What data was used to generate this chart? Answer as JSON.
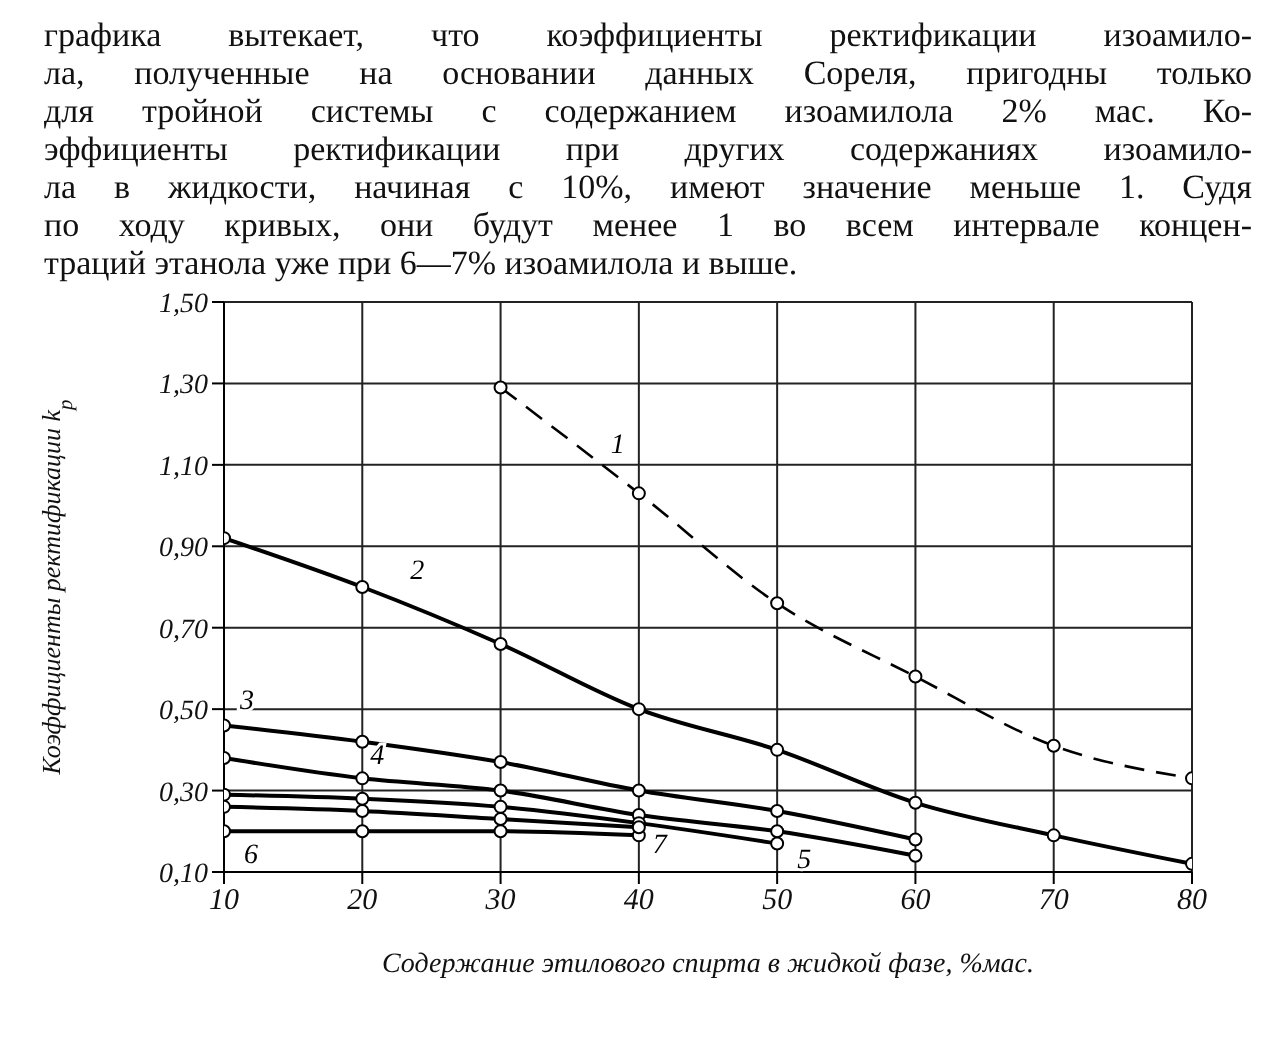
{
  "chart_data": {
    "type": "line",
    "annotations": [
      "графика вытекает, что коэффициенты ректификации изоамило-",
      "ла, полученные на основании данных Сореля, пригодны только",
      "для тройной системы с содержанием изоамилола 2% мас. Ко-",
      "эффициенты ректификации при других содержаниях изоамило-",
      "ла в жидкости, начиная с 10%, имеют значение меньше 1. Судя",
      "по ходу кривых, они будут менее 1 во всем интервале концен-",
      "траций этанола уже при 6—7% изоамилола и выше."
    ],
    "xlabel": "Содержание этилового спирта в жидкой фазе, %мас.",
    "ylabel": "Коэффициенты ректификации k$_{р}$",
    "xlim": [
      10,
      80
    ],
    "xticks": [
      10,
      20,
      30,
      40,
      50,
      60,
      70,
      80
    ],
    "ylim": [
      0.1,
      1.5
    ],
    "yticks": [
      {
        "value": 0.1,
        "label": "0,10"
      },
      {
        "value": 0.3,
        "label": "0,30"
      },
      {
        "value": 0.5,
        "label": "0,50"
      },
      {
        "value": 0.7,
        "label": "0,70"
      },
      {
        "value": 0.9,
        "label": "0,90"
      },
      {
        "value": 1.1,
        "label": "1,10"
      },
      {
        "value": 1.3,
        "label": "1,30"
      },
      {
        "value": 1.5,
        "label": "1,50"
      }
    ],
    "grid": true,
    "marker": "circle",
    "series": [
      {
        "name": "1",
        "color": "#000000",
        "line_style": "dashed",
        "x": [
          30,
          40,
          50,
          60,
          70,
          80
        ],
        "values": [
          1.29,
          1.03,
          0.76,
          0.58,
          0.41,
          0.33
        ]
      },
      {
        "name": "2",
        "color": "#000000",
        "x": [
          10,
          20,
          30,
          40,
          50,
          60,
          70,
          80
        ],
        "values": [
          0.92,
          0.8,
          0.66,
          0.5,
          0.4,
          0.27,
          0.19,
          0.12
        ]
      },
      {
        "name": "3",
        "color": "#000000",
        "x": [
          10,
          20,
          30,
          40,
          50,
          60
        ],
        "values": [
          0.46,
          0.42,
          0.37,
          0.3,
          0.25,
          0.18
        ]
      },
      {
        "name": "4",
        "color": "#000000",
        "x": [
          10,
          20,
          30,
          40,
          50,
          60
        ],
        "values": [
          0.38,
          0.33,
          0.3,
          0.24,
          0.2,
          0.14
        ]
      },
      {
        "name": "5",
        "color": "#000000",
        "x": [
          10,
          20,
          30,
          40,
          50
        ],
        "values": [
          0.29,
          0.28,
          0.26,
          0.22,
          0.17
        ]
      },
      {
        "name": "6",
        "color": "#000000",
        "x": [
          10,
          20,
          30,
          40
        ],
        "values": [
          0.2,
          0.2,
          0.2,
          0.19
        ]
      },
      {
        "name": "7",
        "color": "#000000",
        "x": [
          10,
          20,
          30,
          40
        ],
        "values": [
          0.26,
          0.25,
          0.23,
          0.21
        ]
      }
    ]
  }
}
